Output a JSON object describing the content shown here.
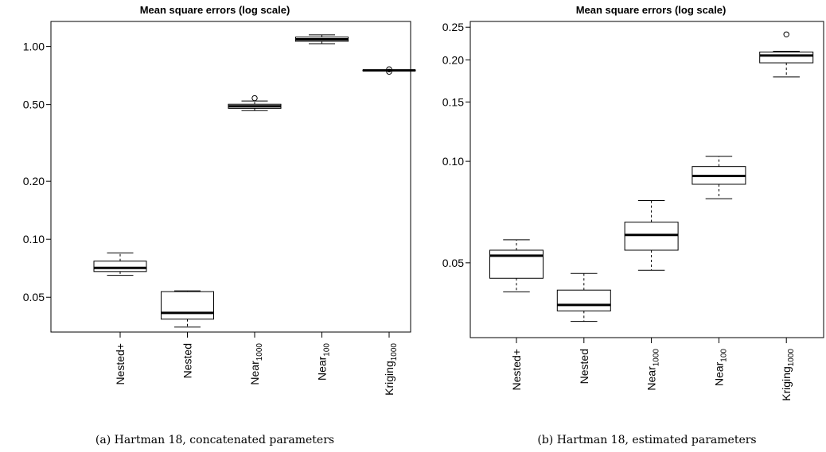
{
  "chart_data": [
    {
      "type": "boxplot",
      "title": "Mean square errors (log scale)",
      "caption": "(a) Hartman 18, concatenated parameters",
      "yscale": "log",
      "ylim": [
        0.033,
        1.35
      ],
      "yticks": [
        0.05,
        0.1,
        0.2,
        0.5,
        1.0
      ],
      "ytick_labels": [
        "0.05",
        "0.10",
        "0.20",
        "0.50",
        "1.00"
      ],
      "categories": [
        {
          "label": "Nested+",
          "base": "Nested+",
          "sub": ""
        },
        {
          "label": "Nested",
          "base": "Nested",
          "sub": ""
        },
        {
          "label": "Near1000",
          "base": "Near",
          "sub": "1000"
        },
        {
          "label": "Near100",
          "base": "Near",
          "sub": "100"
        },
        {
          "label": "Kriging1000",
          "base": "Kriging",
          "sub": "1000"
        }
      ],
      "boxes": [
        {
          "whisker_low": 0.065,
          "q1": 0.068,
          "median": 0.071,
          "q3": 0.077,
          "whisker_high": 0.085,
          "outliers": []
        },
        {
          "whisker_low": 0.035,
          "q1": 0.0385,
          "median": 0.0415,
          "q3": 0.0535,
          "whisker_high": 0.054,
          "outliers": []
        },
        {
          "whisker_low": 0.465,
          "q1": 0.478,
          "median": 0.49,
          "q3": 0.502,
          "whisker_high": 0.522,
          "outliers": [
            0.54
          ]
        },
        {
          "whisker_low": 1.035,
          "q1": 1.065,
          "median": 1.09,
          "q3": 1.12,
          "whisker_high": 1.15,
          "outliers": []
        },
        {
          "whisker_low": 0.748,
          "q1": 0.748,
          "median": 0.752,
          "q3": 0.756,
          "whisker_high": 0.756,
          "outliers": [
            0.74,
            0.762
          ]
        }
      ]
    },
    {
      "type": "boxplot",
      "title": "Mean square errors (log scale)",
      "caption": "(b) Hartman 18, estimated parameters",
      "yscale": "log",
      "ylim": [
        0.03,
        0.26
      ],
      "yticks": [
        0.05,
        0.1,
        0.15,
        0.2,
        0.25
      ],
      "ytick_labels": [
        "0.05",
        "0.10",
        "0.15",
        "0.20",
        "0.25"
      ],
      "categories": [
        {
          "label": "Nested+",
          "base": "Nested+",
          "sub": ""
        },
        {
          "label": "Nested",
          "base": "Nested",
          "sub": ""
        },
        {
          "label": "Near1000",
          "base": "Near",
          "sub": "1000"
        },
        {
          "label": "Near100",
          "base": "Near",
          "sub": "100"
        },
        {
          "label": "Kriging1000",
          "base": "Kriging",
          "sub": "1000"
        }
      ],
      "boxes": [
        {
          "whisker_low": 0.041,
          "q1": 0.045,
          "median": 0.0525,
          "q3": 0.0545,
          "whisker_high": 0.0585,
          "outliers": []
        },
        {
          "whisker_low": 0.0335,
          "q1": 0.036,
          "median": 0.0375,
          "q3": 0.0415,
          "whisker_high": 0.0465,
          "outliers": []
        },
        {
          "whisker_low": 0.0475,
          "q1": 0.0545,
          "median": 0.0605,
          "q3": 0.066,
          "whisker_high": 0.0765,
          "outliers": []
        },
        {
          "whisker_low": 0.0775,
          "q1": 0.0855,
          "median": 0.0905,
          "q3": 0.0965,
          "whisker_high": 0.1035,
          "outliers": []
        },
        {
          "whisker_low": 0.178,
          "q1": 0.196,
          "median": 0.206,
          "q3": 0.211,
          "whisker_high": 0.212,
          "outliers": [
            0.238
          ]
        }
      ]
    }
  ]
}
